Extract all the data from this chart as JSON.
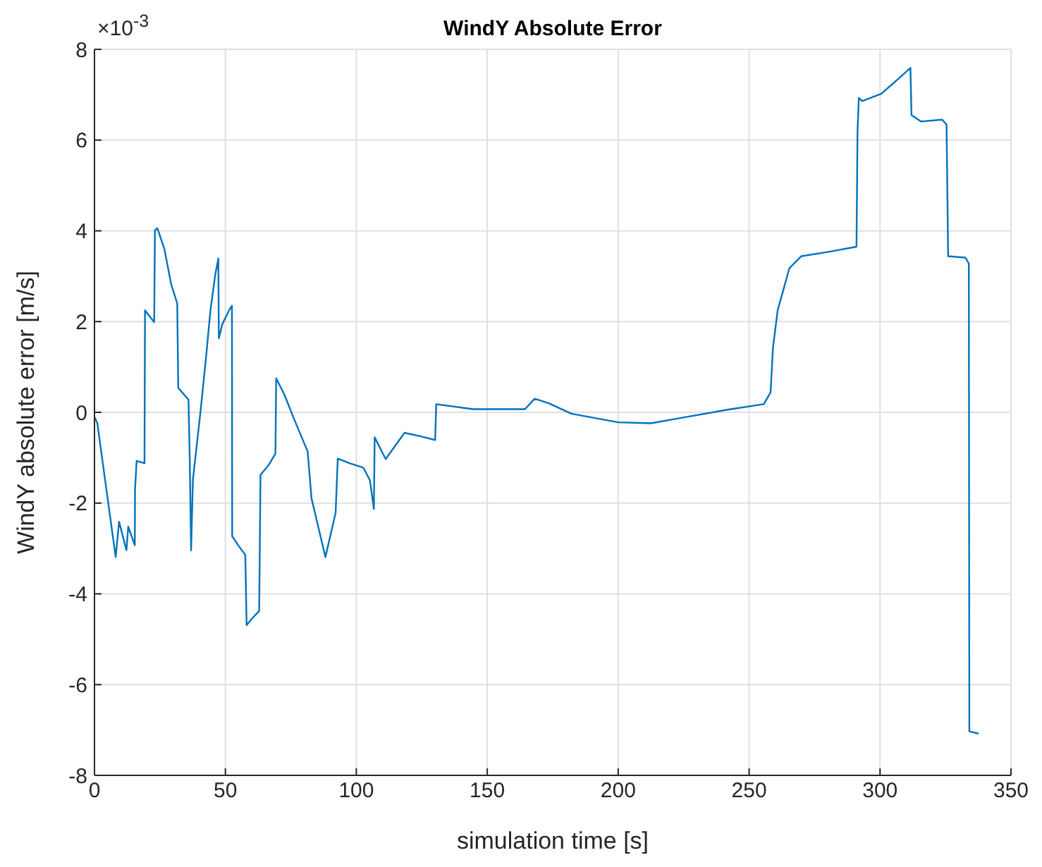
{
  "chart_data": {
    "type": "line",
    "title": "WindY Absolute Error",
    "xlabel": "simulation time [s]",
    "ylabel": "WindY absolute error [m/s]",
    "annotations": [
      "×10$^{-3}$"
    ],
    "xlim": [
      0,
      350
    ],
    "xticks": [
      0,
      50,
      100,
      150,
      200,
      250,
      300,
      350
    ],
    "ylim": [
      -8,
      8
    ],
    "yticks": [
      -8,
      -6,
      -4,
      -2,
      0,
      2,
      4,
      6,
      8
    ],
    "grid": true,
    "marker": "none",
    "line_style": "solid",
    "series": [
      {
        "color": "#0072bd",
        "x": [
          0,
          1.1,
          5.5,
          8.1,
          9.4,
          12.2,
          12.9,
          15.4,
          15.5,
          16.1,
          19.1,
          19.3,
          21.4,
          22.8,
          23.1,
          24.0,
          26.7,
          29.3,
          31.6,
          32.0,
          35.9,
          36.4,
          36.9,
          37.6,
          40.5,
          42.6,
          44.3,
          46.1,
          47.3,
          47.5,
          48.8,
          51.4,
          52.5,
          52.6,
          54.9,
          57.6,
          58.1,
          60.2,
          62.9,
          63.4,
          66.4,
          69.1,
          69.4,
          72.6,
          76.1,
          81.4,
          82.9,
          88.2,
          92.1,
          92.9,
          97.4,
          102.7,
          105.2,
          106.7,
          107.0,
          111.2,
          118.4,
          124.7,
          130.1,
          130.5,
          144.6,
          164.4,
          168.1,
          173.5,
          182.1,
          200,
          212.5,
          225.1,
          243.0,
          255.6,
          258.2,
          259.1,
          260.9,
          265.4,
          269.9,
          280.6,
          291.0,
          291.4,
          291.9,
          293.2,
          300.4,
          306.6,
          311.6,
          312.0,
          315.6,
          323.7,
          325.4,
          326.0,
          332.6,
          333.9,
          334.1,
          337.6
        ],
        "values": [
          -0.1,
          -0.24,
          -2.1,
          -3.19,
          -2.41,
          -3.04,
          -2.52,
          -2.93,
          -1.69,
          -1.07,
          -1.12,
          2.25,
          2.09,
          1.99,
          4.01,
          4.06,
          3.6,
          2.82,
          2.4,
          0.54,
          0.28,
          -1.07,
          -3.04,
          -1.48,
          0.02,
          1.21,
          2.25,
          3.03,
          3.39,
          1.63,
          1.94,
          2.25,
          2.35,
          -2.73,
          -2.93,
          -3.14,
          -4.69,
          -4.54,
          -4.38,
          -1.38,
          -1.17,
          -0.91,
          0.75,
          0.38,
          -0.13,
          -0.86,
          -1.9,
          -3.19,
          -2.21,
          -1.02,
          -1.12,
          -1.22,
          -1.5,
          -2.13,
          -0.55,
          -1.03,
          -0.45,
          -0.53,
          -0.61,
          0.18,
          0.07,
          0.07,
          0.3,
          0.2,
          -0.03,
          -0.22,
          -0.24,
          -0.11,
          0.07,
          0.18,
          0.44,
          1.42,
          2.25,
          3.18,
          3.44,
          3.54,
          3.65,
          6.19,
          6.93,
          6.86,
          7.02,
          7.33,
          7.59,
          6.55,
          6.41,
          6.45,
          6.34,
          3.44,
          3.41,
          3.28,
          -7.03,
          -7.08
        ]
      }
    ]
  }
}
